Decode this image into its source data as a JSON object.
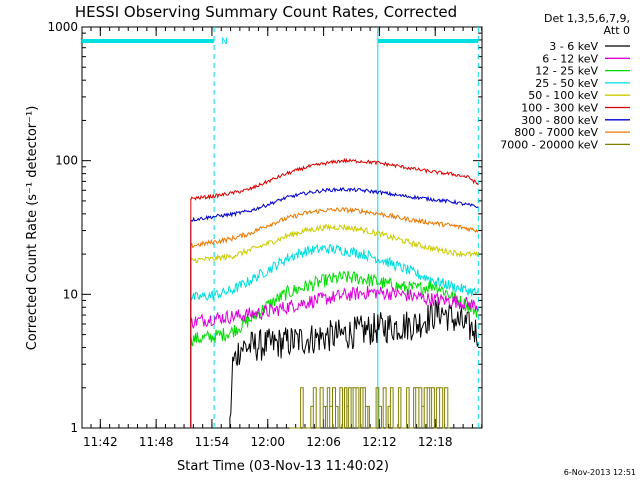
{
  "title": "HESSI Observing Summary Count Rates, Corrected",
  "footer_timestamp": "6-Nov-2013 12:51",
  "chart_data": {
    "type": "line",
    "title": "HESSI Observing Summary Count Rates, Corrected",
    "xlabel": "Start Time (03-Nov-13 11:40:02)",
    "ylabel": "Corrected Count Rate (s⁻¹ detector⁻¹)",
    "yscale": "log",
    "ylim": [
      1,
      1000
    ],
    "xlim_minutes": [
      0,
      43
    ],
    "x_ticks": [
      {
        "m": 1.97,
        "label": "11:42"
      },
      {
        "m": 7.97,
        "label": "11:48"
      },
      {
        "m": 13.97,
        "label": "11:54"
      },
      {
        "m": 19.97,
        "label": "12:00"
      },
      {
        "m": 25.97,
        "label": "12:06"
      },
      {
        "m": 31.97,
        "label": "12:12"
      },
      {
        "m": 37.97,
        "label": "12:18"
      }
    ],
    "y_ticks": [
      {
        "v": 1,
        "label": "1"
      },
      {
        "v": 10,
        "label": "10"
      },
      {
        "v": 100,
        "label": "100"
      },
      {
        "v": 1000,
        "label": "1000"
      }
    ],
    "legend_title": [
      "Det 1,3,5,6,7,9,",
      "Att 0"
    ],
    "legend_position": "right",
    "grid": false,
    "annotations": {
      "n_marker": {
        "label": "N",
        "m": 15.3,
        "color": "#00e0e0"
      },
      "night_bars": [
        [
          0,
          14.2
        ],
        [
          31.8,
          42.6
        ]
      ],
      "vlines_solid": [
        31.8
      ],
      "vlines_dashed": [
        14.2,
        42.6
      ],
      "vlines_color": "#00e0e0"
    },
    "series": [
      {
        "name": "3 - 6 keV",
        "color": "#000000",
        "start": 15.9,
        "points": [
          [
            15.9,
            1
          ],
          [
            16.2,
            3
          ],
          [
            17,
            4
          ],
          [
            20,
            4.2
          ],
          [
            24,
            4.6
          ],
          [
            28,
            5
          ],
          [
            32,
            5.6
          ],
          [
            36,
            6
          ],
          [
            38.5,
            7.5
          ],
          [
            40,
            6.5
          ],
          [
            42.6,
            5.2
          ]
        ],
        "noise": 0.28
      },
      {
        "name": "6 - 12 keV",
        "color": "#dd00dd",
        "start": 11.7,
        "points": [
          [
            11.7,
            6.2
          ],
          [
            14,
            6.6
          ],
          [
            16,
            6.8
          ],
          [
            20,
            7.4
          ],
          [
            24,
            8.7
          ],
          [
            28,
            9.8
          ],
          [
            31,
            10.4
          ],
          [
            34,
            10.1
          ],
          [
            37,
            9.3
          ],
          [
            40,
            8.9
          ],
          [
            42.6,
            8.2
          ]
        ],
        "noise": 0.12
      },
      {
        "name": "12 - 25 keV",
        "color": "#00dd00",
        "start": 11.7,
        "points": [
          [
            11.7,
            4.6
          ],
          [
            14,
            4.8
          ],
          [
            16,
            5.2
          ],
          [
            18,
            6.4
          ],
          [
            20,
            8.3
          ],
          [
            22,
            10.2
          ],
          [
            24,
            11.4
          ],
          [
            26,
            12.6
          ],
          [
            28,
            13.4
          ],
          [
            30,
            13.2
          ],
          [
            32,
            12.3
          ],
          [
            34,
            11.4
          ],
          [
            36,
            11
          ],
          [
            38,
            11.8
          ],
          [
            40,
            9.4
          ],
          [
            42.6,
            7.4
          ]
        ],
        "noise": 0.12
      },
      {
        "name": "25 - 50 keV",
        "color": "#00dddd",
        "start": 11.7,
        "points": [
          [
            11.7,
            9.4
          ],
          [
            14,
            9.8
          ],
          [
            16,
            10.6
          ],
          [
            18,
            12.6
          ],
          [
            20,
            15.2
          ],
          [
            22,
            18.6
          ],
          [
            24,
            21
          ],
          [
            26,
            22
          ],
          [
            28,
            21.4
          ],
          [
            30,
            20.2
          ],
          [
            32,
            18.4
          ],
          [
            34,
            16.2
          ],
          [
            36,
            14.2
          ],
          [
            38,
            12.6
          ],
          [
            40,
            11.4
          ],
          [
            42.6,
            10.2
          ]
        ],
        "noise": 0.09
      },
      {
        "name": "50 - 100 keV",
        "color": "#cccc00",
        "start": 11.7,
        "points": [
          [
            11.7,
            18
          ],
          [
            14,
            18.4
          ],
          [
            16,
            19.2
          ],
          [
            18,
            21.3
          ],
          [
            20,
            24
          ],
          [
            22,
            27.3
          ],
          [
            24,
            30
          ],
          [
            26,
            31.6
          ],
          [
            28,
            31.8
          ],
          [
            30,
            30.6
          ],
          [
            32,
            28.2
          ],
          [
            34,
            25.8
          ],
          [
            36,
            23.5
          ],
          [
            38,
            21.8
          ],
          [
            40,
            20.5
          ],
          [
            42.6,
            19.6
          ]
        ],
        "noise": 0.05
      },
      {
        "name": "100 - 300 keV",
        "color": "#dd0000",
        "start": 11.7,
        "points": [
          [
            11.7,
            52
          ],
          [
            14,
            54
          ],
          [
            16,
            57
          ],
          [
            18,
            61
          ],
          [
            20,
            70
          ],
          [
            22,
            80
          ],
          [
            24,
            89
          ],
          [
            26,
            95
          ],
          [
            28,
            100
          ],
          [
            30,
            99
          ],
          [
            32,
            96
          ],
          [
            34,
            91
          ],
          [
            36,
            86
          ],
          [
            38,
            82
          ],
          [
            40,
            79
          ],
          [
            41.6,
            75
          ],
          [
            42.6,
            66
          ]
        ],
        "noise": 0.03
      },
      {
        "name": "300 - 800 keV",
        "color": "#0000cc",
        "start": 11.7,
        "points": [
          [
            11.7,
            36
          ],
          [
            14,
            38
          ],
          [
            16,
            39.6
          ],
          [
            18,
            42
          ],
          [
            20,
            47
          ],
          [
            22,
            53
          ],
          [
            24,
            57
          ],
          [
            26,
            60
          ],
          [
            28,
            61
          ],
          [
            30,
            60
          ],
          [
            32,
            58
          ],
          [
            34,
            55
          ],
          [
            36,
            53
          ],
          [
            38,
            51
          ],
          [
            40,
            49
          ],
          [
            42.6,
            45
          ]
        ],
        "noise": 0.03
      },
      {
        "name": "800 - 7000 keV",
        "color": "#ee7700",
        "start": 11.7,
        "points": [
          [
            11.7,
            23
          ],
          [
            14,
            24.5
          ],
          [
            16,
            26
          ],
          [
            18,
            28.5
          ],
          [
            20,
            33
          ],
          [
            22,
            37
          ],
          [
            24,
            40.5
          ],
          [
            26,
            42.5
          ],
          [
            28,
            43
          ],
          [
            30,
            42
          ],
          [
            32,
            40
          ],
          [
            34,
            37.5
          ],
          [
            36,
            35.5
          ],
          [
            38,
            34
          ],
          [
            40,
            32.5
          ],
          [
            42.6,
            30
          ]
        ],
        "noise": 0.04
      },
      {
        "name": "7000 - 20000 keV",
        "color": "#808000",
        "start": 23.5,
        "end": 39.5,
        "points": [
          [
            23.5,
            2
          ],
          [
            39.5,
            2
          ]
        ],
        "noise": 0,
        "spiky": true
      }
    ]
  }
}
